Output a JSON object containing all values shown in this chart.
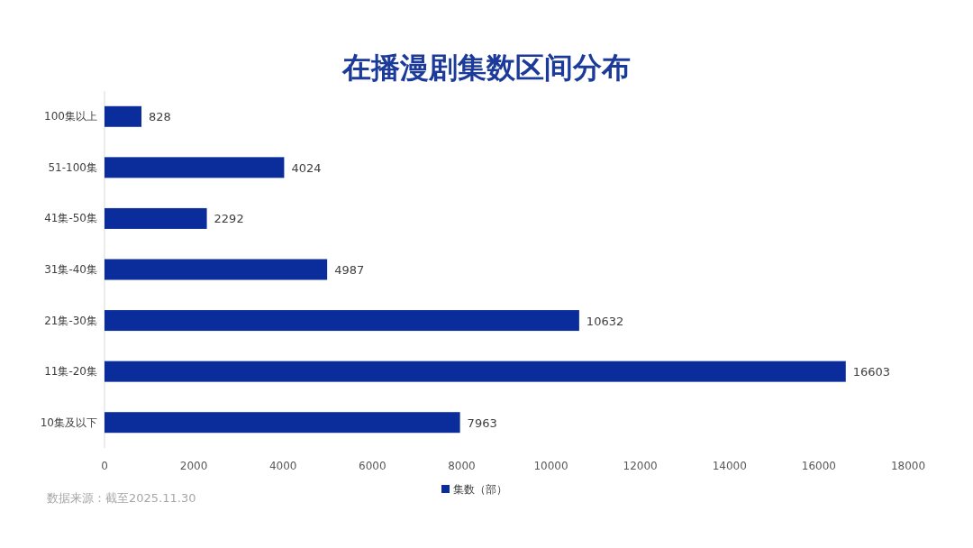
{
  "chart_data": {
    "type": "bar",
    "orientation": "horizontal",
    "title": "在播漫剧集数区间分布",
    "categories": [
      "100集以上",
      "51-100集",
      "41集-50集",
      "31集-40集",
      "21集-30集",
      "11集-20集",
      "10集及以下"
    ],
    "series": [
      {
        "name": "集数（部）",
        "color": "#0b2d9c",
        "values": [
          828,
          4024,
          2292,
          4987,
          10632,
          16603,
          7963
        ]
      }
    ],
    "xlim": [
      0,
      18000
    ],
    "xticks": [
      0,
      2000,
      4000,
      6000,
      8000,
      10000,
      12000,
      14000,
      16000,
      18000
    ],
    "data_labels": true,
    "legend": "bottom",
    "grid": false,
    "annotations": [
      "数据来源：截至2025.11.30"
    ]
  }
}
